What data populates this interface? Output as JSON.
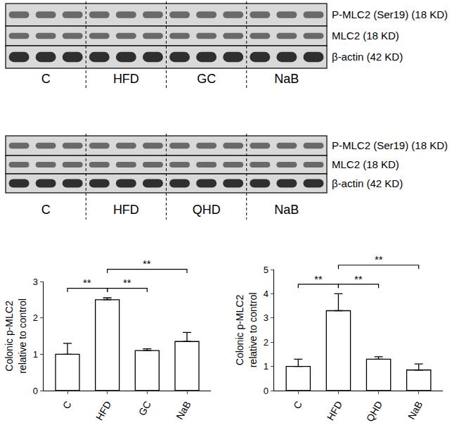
{
  "blots": [
    {
      "rows": [
        "P-MLC2 (Ser19) (18 KD)",
        "MLC2 (18 KD)",
        "β-actin (42 KD)"
      ],
      "groups": [
        "C",
        "HFD",
        "GC",
        "NaB"
      ]
    },
    {
      "rows": [
        "P-MLC2 (Ser19) (18 KD)",
        "MLC2 (18 KD)",
        "β-actin (42 KD)"
      ],
      "groups": [
        "C",
        "HFD",
        "QHD",
        "NaB"
      ]
    }
  ],
  "chart_data": [
    {
      "type": "bar",
      "categories": [
        "C",
        "HFD",
        "GC",
        "NaB"
      ],
      "values": [
        1.0,
        2.5,
        1.1,
        1.35
      ],
      "errors": [
        0.3,
        0.05,
        0.05,
        0.25
      ],
      "color": "#ffffff",
      "y_label": [
        "Colonic p-MLC2",
        "relative to control"
      ],
      "ylim": [
        0,
        3
      ],
      "yticks": [
        0,
        1,
        2,
        3
      ],
      "grid": false,
      "comparisons": [
        {
          "from": "C",
          "to": "HFD",
          "label": "**"
        },
        {
          "from": "HFD",
          "to": "GC",
          "label": "**"
        },
        {
          "from": "HFD",
          "to": "NaB",
          "label": "**"
        }
      ]
    },
    {
      "type": "bar",
      "categories": [
        "C",
        "HFD",
        "QHD",
        "NaB"
      ],
      "values": [
        1.0,
        3.3,
        1.3,
        0.85
      ],
      "errors": [
        0.3,
        0.7,
        0.1,
        0.25
      ],
      "color": "#ffffff",
      "y_label": [
        "Colonic p-MLC2",
        "relative to control"
      ],
      "ylim": [
        0,
        5
      ],
      "yticks": [
        0,
        1,
        2,
        3,
        4,
        5
      ],
      "grid": false,
      "comparisons": [
        {
          "from": "C",
          "to": "HFD",
          "label": "**"
        },
        {
          "from": "HFD",
          "to": "QHD",
          "label": "**"
        },
        {
          "from": "HFD",
          "to": "NaB",
          "label": "**"
        }
      ]
    }
  ]
}
